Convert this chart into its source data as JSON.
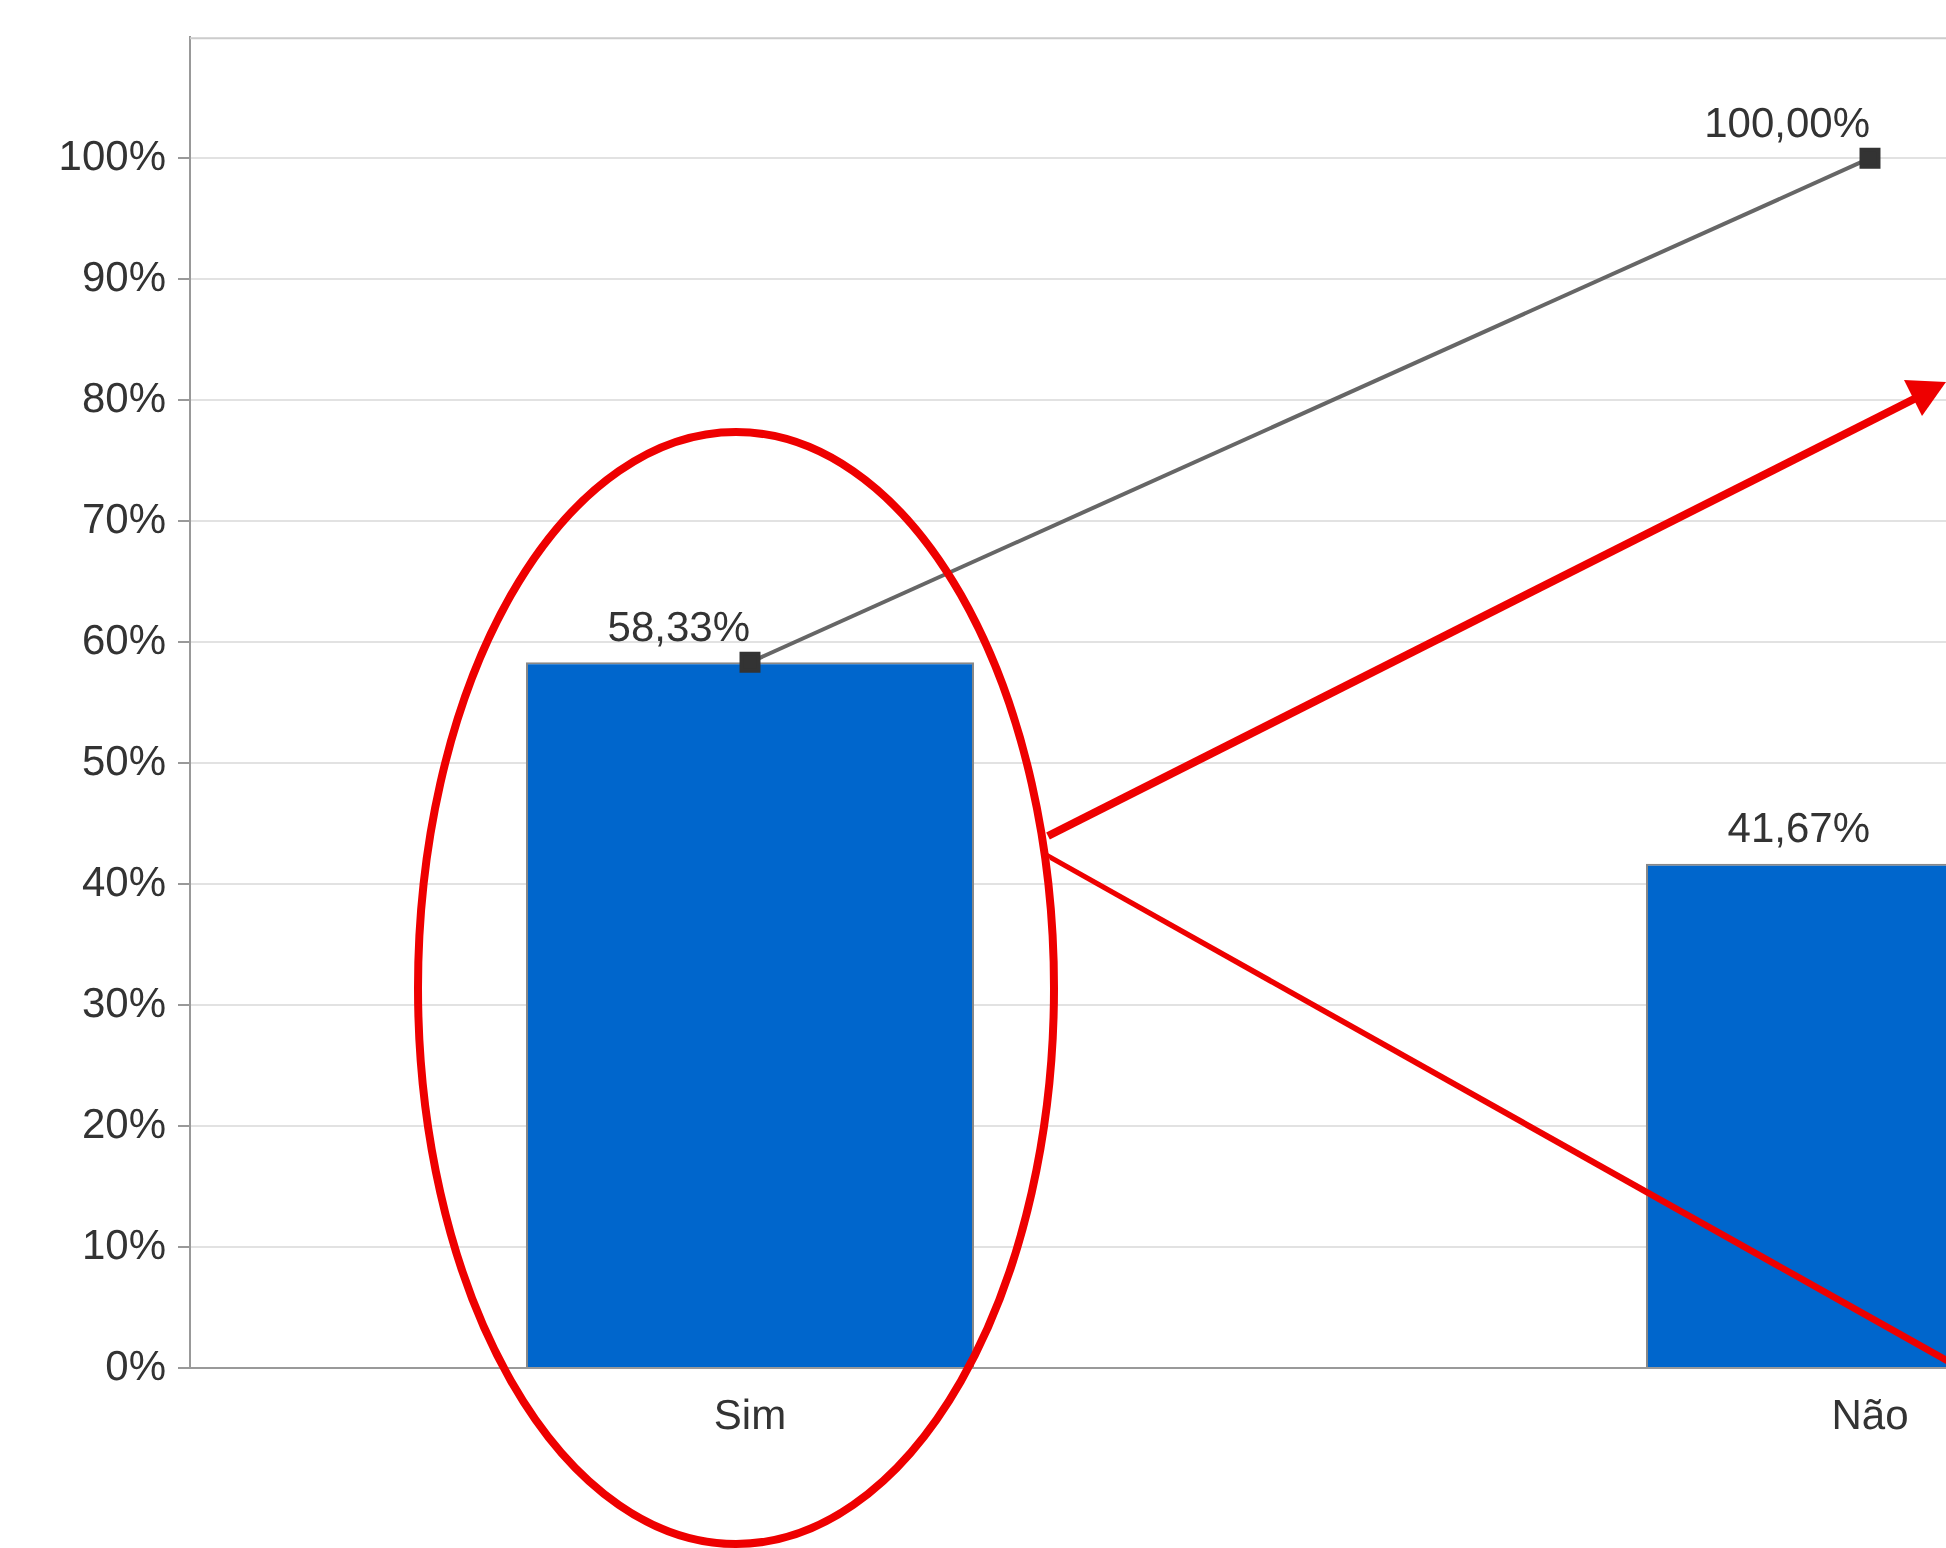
{
  "chart_data": {
    "type": "bar",
    "categories": [
      "Sim",
      "Não"
    ],
    "series": [
      {
        "color": "#0066cc",
        "values": [
          58.33,
          41.67
        ],
        "value_labels": [
          "58,33%",
          "41,67%"
        ]
      },
      {
        "type": "line",
        "color": "#666666",
        "values": [
          58.33,
          100
        ],
        "value_labels": [
          null,
          "100,00%"
        ],
        "marker": "square"
      }
    ],
    "ylim": [
      0,
      110
    ],
    "yticks": [
      {
        "value": 0,
        "label": "0%"
      },
      {
        "value": 10,
        "label": "10%"
      },
      {
        "value": 20,
        "label": "20%"
      },
      {
        "value": 30,
        "label": "30%"
      },
      {
        "value": 40,
        "label": "40%"
      },
      {
        "value": 50,
        "label": "50%"
      },
      {
        "value": 60,
        "label": "60%"
      },
      {
        "value": 70,
        "label": "70%"
      },
      {
        "value": 80,
        "label": "80%"
      },
      {
        "value": 90,
        "label": "90%"
      },
      {
        "value": 100,
        "label": "100%"
      }
    ],
    "grid": "y",
    "legend": false
  }
}
